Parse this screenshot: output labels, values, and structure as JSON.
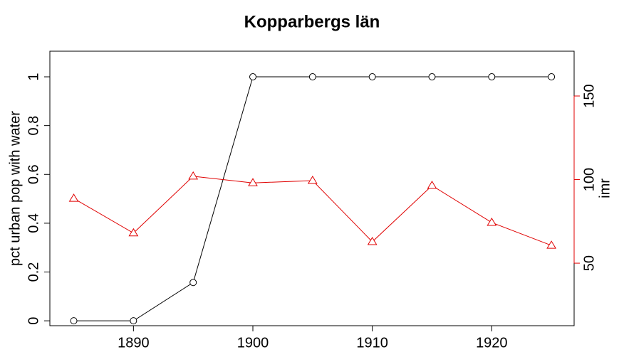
{
  "chart_data": {
    "type": "line",
    "title": "Kopparbergs län",
    "ylabel": "pct urban pop with water",
    "y2label": "imr",
    "x": [
      1885,
      1890,
      1895,
      1900,
      1905,
      1910,
      1915,
      1920,
      1925
    ],
    "xlim": [
      1883,
      1926.9
    ],
    "xticks": [
      1890,
      1900,
      1910,
      1920
    ],
    "ylim": [
      -0.02,
      1.105
    ],
    "yticks": [
      0,
      0.2,
      0.4,
      0.6,
      0.8,
      1
    ],
    "y2lim": [
      12.6,
      176.8
    ],
    "y2ticks": [
      50,
      100,
      150
    ],
    "y2color": "#e00000",
    "series": [
      {
        "color": "#000000",
        "marker": "circle",
        "values": [
          0,
          0,
          0.157,
          1,
          1,
          1,
          1,
          1,
          1
        ]
      },
      {
        "color": "#e00000",
        "marker": "triangle",
        "axis": "y2",
        "values": [
          88.7,
          68,
          102,
          98,
          99.4,
          62.8,
          96.4,
          74.3,
          60.6
        ]
      }
    ]
  }
}
